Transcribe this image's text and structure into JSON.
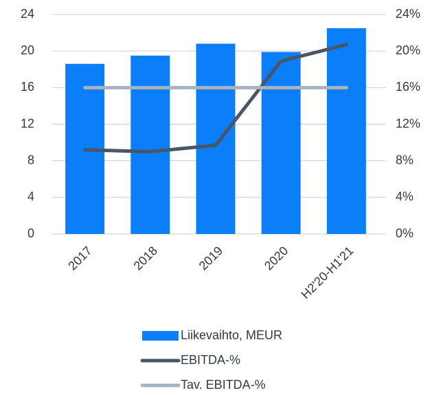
{
  "chart_data": {
    "type": "bar",
    "categories": [
      "2017",
      "2018",
      "2019",
      "2020",
      "H2'20-H1'21"
    ],
    "series": [
      {
        "name": "Liikevaihto, MEUR",
        "type": "bar",
        "color": "#0b7ffa",
        "values": [
          18.6,
          19.5,
          20.8,
          19.9,
          22.5
        ]
      },
      {
        "name": "EBITDA-%",
        "type": "line",
        "axis": "y2",
        "color": "#4a5566",
        "values": [
          9.2,
          9.0,
          9.7,
          18.9,
          20.7
        ]
      },
      {
        "name": "Tav. EBITDA-%",
        "type": "line",
        "axis": "y2",
        "color": "#a9b3bf",
        "values": [
          16,
          16,
          16,
          16,
          16
        ]
      }
    ],
    "ylim": [
      0,
      24
    ],
    "yticks": [
      0,
      4,
      8,
      12,
      16,
      20,
      24
    ],
    "y2lim": [
      0,
      24
    ],
    "y2ticks": [
      {
        "value": 0,
        "label": "0%"
      },
      {
        "value": 4,
        "label": "4%"
      },
      {
        "value": 8,
        "label": "8%"
      },
      {
        "value": 12,
        "label": "12%"
      },
      {
        "value": 16,
        "label": "16%"
      },
      {
        "value": 20,
        "label": "20%"
      },
      {
        "value": 24,
        "label": "24%"
      }
    ],
    "grid": true,
    "legend": "bottom"
  }
}
